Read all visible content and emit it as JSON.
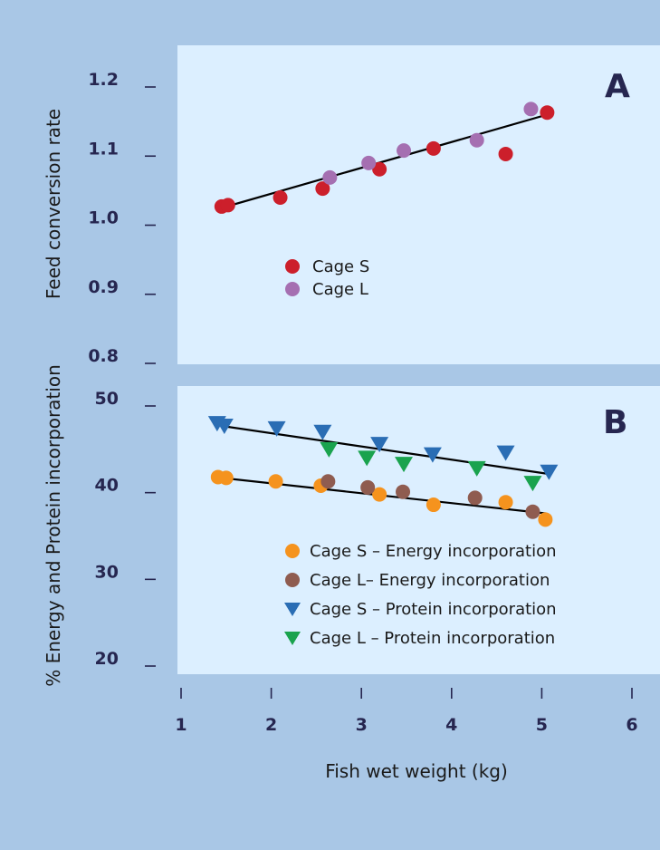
{
  "colors": {
    "background": "#a9c7e6",
    "panel": "#dcefff",
    "tick_text": "#262650",
    "fit_line": "#000000"
  },
  "x_axis": {
    "label": "Fish wet weight (kg)",
    "ticks": [
      "1",
      "2",
      "3",
      "4",
      "5",
      "6"
    ]
  },
  "chart_data": [
    {
      "type": "scatter",
      "panel": "A",
      "ylabel": "Feed conversion rate",
      "xlim": [
        1,
        6
      ],
      "ylim": [
        0.8,
        1.2
      ],
      "y_ticks": [
        "1.2",
        "1.1",
        "1.0",
        "0.9",
        "0.8"
      ],
      "legend_position": "center",
      "series": [
        {
          "name": "Cage S",
          "color": "#cc1f2b",
          "marker": "circle",
          "points": [
            [
              1.45,
              1.027
            ],
            [
              1.52,
              1.029
            ],
            [
              2.1,
              1.04
            ],
            [
              2.57,
              1.053
            ],
            [
              3.2,
              1.081
            ],
            [
              3.8,
              1.111
            ],
            [
              4.6,
              1.103
            ],
            [
              5.06,
              1.163
            ]
          ]
        },
        {
          "name": "Cage L",
          "color": "#a56fb1",
          "marker": "circle",
          "points": [
            [
              2.65,
              1.069
            ],
            [
              3.08,
              1.09
            ],
            [
              3.47,
              1.108
            ],
            [
              4.28,
              1.123
            ],
            [
              4.88,
              1.168
            ]
          ]
        }
      ],
      "fit_lines": [
        {
          "x": [
            1.45,
            5.06
          ],
          "y": [
            1.025,
            1.16
          ]
        }
      ]
    },
    {
      "type": "scatter",
      "panel": "B",
      "ylabel": "% Energy and Protein incorporation",
      "xlim": [
        1,
        6
      ],
      "ylim": [
        20,
        50
      ],
      "y_ticks": [
        "50",
        "40",
        "30",
        "20"
      ],
      "legend_position": "bottom-right",
      "series": [
        {
          "name": "Cage S – Energy incorporation",
          "color": "#f5931e",
          "marker": "circle",
          "points": [
            [
              1.41,
              41.8
            ],
            [
              1.5,
              41.7
            ],
            [
              2.05,
              41.3
            ],
            [
              2.55,
              40.8
            ],
            [
              3.2,
              39.8
            ],
            [
              3.8,
              38.6
            ],
            [
              4.6,
              38.9
            ],
            [
              5.04,
              36.9
            ]
          ]
        },
        {
          "name": "Cage L– Energy incorporation",
          "color": "#8f5c50",
          "marker": "circle",
          "points": [
            [
              2.63,
              41.3
            ],
            [
              3.07,
              40.6
            ],
            [
              3.46,
              40.1
            ],
            [
              4.26,
              39.4
            ],
            [
              4.9,
              37.8
            ]
          ]
        },
        {
          "name": "Cage S – Protein incorporation",
          "color": "#2a6db4",
          "marker": "triangle-down",
          "points": [
            [
              1.4,
              48.0
            ],
            [
              1.48,
              47.7
            ],
            [
              2.06,
              47.4
            ],
            [
              2.57,
              47.0
            ],
            [
              3.2,
              45.6
            ],
            [
              3.79,
              44.4
            ],
            [
              4.6,
              44.6
            ],
            [
              5.08,
              42.4
            ]
          ]
        },
        {
          "name": "Cage L – Protein incorporation",
          "color": "#1aa34e",
          "marker": "triangle-down",
          "points": [
            [
              2.64,
              45.0
            ],
            [
              3.06,
              44.0
            ],
            [
              3.47,
              43.3
            ],
            [
              4.28,
              42.8
            ],
            [
              4.9,
              41.1
            ]
          ]
        }
      ],
      "fit_lines": [
        {
          "x": [
            1.45,
            5.05
          ],
          "y": [
            47.7,
            42.2
          ]
        },
        {
          "x": [
            1.45,
            5.05
          ],
          "y": [
            41.7,
            37.6
          ]
        }
      ]
    }
  ]
}
